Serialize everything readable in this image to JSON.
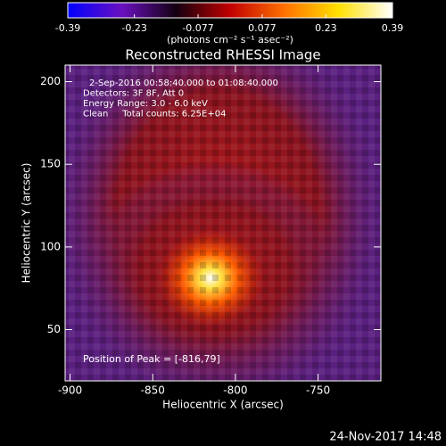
{
  "chart_data": {
    "type": "heatmap",
    "title": "Reconstructed RHESSI Image",
    "xlabel": "Heliocentric X (arcsec)",
    "ylabel": "Heliocentric Y (arcsec)",
    "xlim": [
      -903,
      -712
    ],
    "xticks": [
      -900,
      -850,
      -800,
      -750
    ],
    "ylim": [
      19,
      210
    ],
    "yticks": [
      50,
      100,
      150,
      200
    ],
    "colorbar": {
      "lim": [
        -0.39,
        0.39
      ],
      "ticks": [
        -0.39,
        -0.23,
        -0.077,
        0.077,
        0.23,
        0.39
      ],
      "label": "(photons cm⁻² s⁻¹ asec⁻²)",
      "colors": [
        "#0000ff",
        "#6a10c0",
        "#140010",
        "#c00000",
        "#ff7000",
        "#ffe000",
        "#ffffff"
      ]
    },
    "annotations": [
      "2-Sep-2016 00:58:40.000 to 01:08:40.000",
      "Detectors: 3F 8F, Att 0",
      "Energy Range: 3.0 - 6.0 keV",
      "Clean     Total counts: 6.25E+04"
    ],
    "peak_label": "Position of Peak = [-816,79]"
  },
  "timestamp": "24-Nov-2017 14:48"
}
